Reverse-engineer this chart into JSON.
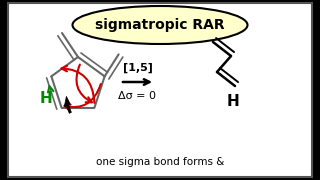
{
  "bg_color": "#ffffff",
  "outer_bg": "#000000",
  "panel_bg": "#ffffff",
  "title_text": "sigmatropic RAR",
  "title_bg": "#ffffcc",
  "title_border": "#000000",
  "reaction_label": "[1,5]",
  "reaction_sublabel": "Δσ = 0",
  "bottom_text": "one sigma bond forms &",
  "arrow_color": "#000000",
  "red_color": "#cc0000",
  "green_color": "#008800",
  "gray_color": "#666666",
  "h_label_color": "#008800",
  "font_size_title": 10,
  "font_size_label": 7,
  "font_size_bottom": 7.5
}
